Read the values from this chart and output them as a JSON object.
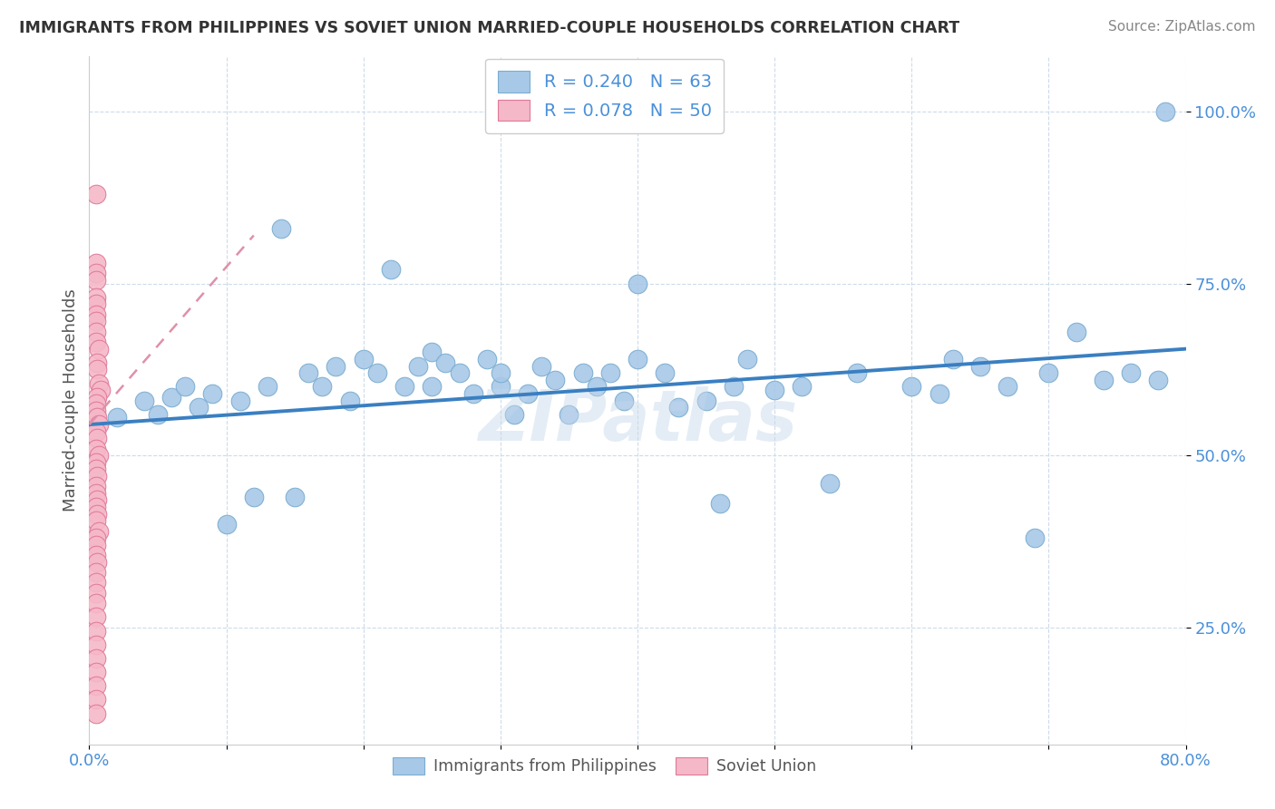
{
  "title": "IMMIGRANTS FROM PHILIPPINES VS SOVIET UNION MARRIED-COUPLE HOUSEHOLDS CORRELATION CHART",
  "source": "Source: ZipAtlas.com",
  "ylabel": "Married-couple Households",
  "xlim": [
    0.0,
    0.8
  ],
  "ylim": [
    0.08,
    1.08
  ],
  "yticks": [
    0.25,
    0.5,
    0.75,
    1.0
  ],
  "yticklabels": [
    "25.0%",
    "50.0%",
    "75.0%",
    "100.0%"
  ],
  "xtick_left": "0.0%",
  "xtick_right": "80.0%",
  "legend_r1": "R = 0.240",
  "legend_n1": "N = 63",
  "legend_r2": "R = 0.078",
  "legend_n2": "N = 50",
  "blue_dot_color": "#a8c8e8",
  "blue_edge_color": "#7aadd0",
  "pink_dot_color": "#f5b8c8",
  "pink_edge_color": "#e07898",
  "trend_blue": "#3a7fc1",
  "trend_pink": "#e090a8",
  "watermark": "ZIPatlas",
  "grid_color": "#c8d8e8",
  "bg_color": "#ffffff",
  "title_color": "#333333",
  "source_color": "#888888",
  "tick_color": "#4a90d9",
  "ylabel_color": "#555555",
  "blue_trend_x0": 0.0,
  "blue_trend_y0": 0.545,
  "blue_trend_x1": 0.8,
  "blue_trend_y1": 0.655,
  "pink_trend_x0": 0.0,
  "pink_trend_y0": 0.545,
  "pink_trend_x1": 0.12,
  "pink_trend_y1": 0.82,
  "phil_x": [
    0.02,
    0.04,
    0.05,
    0.06,
    0.07,
    0.08,
    0.09,
    0.1,
    0.11,
    0.12,
    0.13,
    0.14,
    0.15,
    0.16,
    0.17,
    0.18,
    0.19,
    0.2,
    0.21,
    0.22,
    0.23,
    0.24,
    0.25,
    0.25,
    0.26,
    0.27,
    0.28,
    0.29,
    0.3,
    0.3,
    0.31,
    0.32,
    0.33,
    0.34,
    0.35,
    0.36,
    0.37,
    0.38,
    0.39,
    0.4,
    0.4,
    0.42,
    0.43,
    0.45,
    0.46,
    0.47,
    0.48,
    0.5,
    0.52,
    0.54,
    0.56,
    0.6,
    0.62,
    0.63,
    0.65,
    0.67,
    0.69,
    0.7,
    0.72,
    0.74,
    0.76,
    0.78,
    0.785
  ],
  "phil_y": [
    0.555,
    0.58,
    0.56,
    0.585,
    0.6,
    0.57,
    0.59,
    0.4,
    0.58,
    0.44,
    0.6,
    0.83,
    0.44,
    0.62,
    0.6,
    0.63,
    0.58,
    0.64,
    0.62,
    0.77,
    0.6,
    0.63,
    0.65,
    0.6,
    0.635,
    0.62,
    0.59,
    0.64,
    0.6,
    0.62,
    0.56,
    0.59,
    0.63,
    0.61,
    0.56,
    0.62,
    0.6,
    0.62,
    0.58,
    0.75,
    0.64,
    0.62,
    0.57,
    0.58,
    0.43,
    0.6,
    0.64,
    0.595,
    0.6,
    0.46,
    0.62,
    0.6,
    0.59,
    0.64,
    0.63,
    0.6,
    0.38,
    0.62,
    0.68,
    0.61,
    0.62,
    0.61,
    1.0
  ],
  "soviet_x": [
    0.005,
    0.005,
    0.005,
    0.005,
    0.005,
    0.005,
    0.005,
    0.005,
    0.005,
    0.005,
    0.007,
    0.006,
    0.006,
    0.007,
    0.008,
    0.006,
    0.005,
    0.005,
    0.006,
    0.007,
    0.005,
    0.006,
    0.005,
    0.007,
    0.005,
    0.005,
    0.006,
    0.005,
    0.005,
    0.006,
    0.005,
    0.006,
    0.005,
    0.007,
    0.005,
    0.005,
    0.005,
    0.006,
    0.005,
    0.005,
    0.005,
    0.005,
    0.005,
    0.005,
    0.005,
    0.005,
    0.005,
    0.005,
    0.005,
    0.005
  ],
  "soviet_y": [
    0.88,
    0.78,
    0.765,
    0.755,
    0.73,
    0.72,
    0.705,
    0.695,
    0.68,
    0.665,
    0.655,
    0.635,
    0.625,
    0.605,
    0.595,
    0.585,
    0.575,
    0.565,
    0.555,
    0.545,
    0.535,
    0.525,
    0.51,
    0.5,
    0.49,
    0.48,
    0.47,
    0.455,
    0.445,
    0.435,
    0.425,
    0.415,
    0.405,
    0.39,
    0.38,
    0.37,
    0.355,
    0.345,
    0.33,
    0.315,
    0.3,
    0.285,
    0.265,
    0.245,
    0.225,
    0.205,
    0.185,
    0.165,
    0.145,
    0.125
  ]
}
